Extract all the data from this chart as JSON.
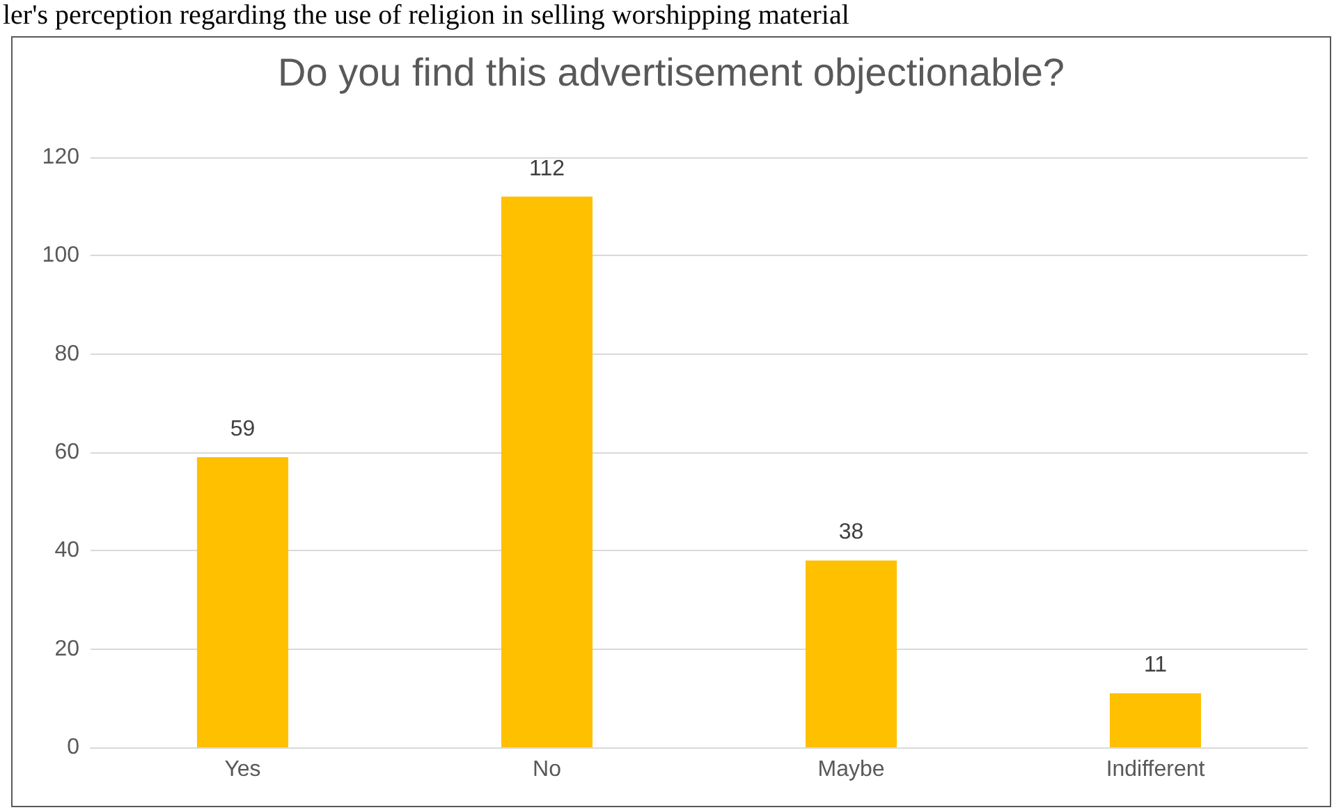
{
  "chart_data": {
    "type": "bar",
    "title": "Do you find this advertisement objectionable?",
    "annotations": [
      "ler's perception regarding the use of religion in selling worshipping material"
    ],
    "categories": [
      "Yes",
      "No",
      "Maybe",
      "Indifferent"
    ],
    "values": [
      59,
      112,
      38,
      11
    ],
    "color": "#ffc000",
    "ylim": [
      0,
      120
    ],
    "yticks": [
      0,
      20,
      40,
      60,
      80,
      100,
      120
    ],
    "grid": "y",
    "data_labels": true
  }
}
